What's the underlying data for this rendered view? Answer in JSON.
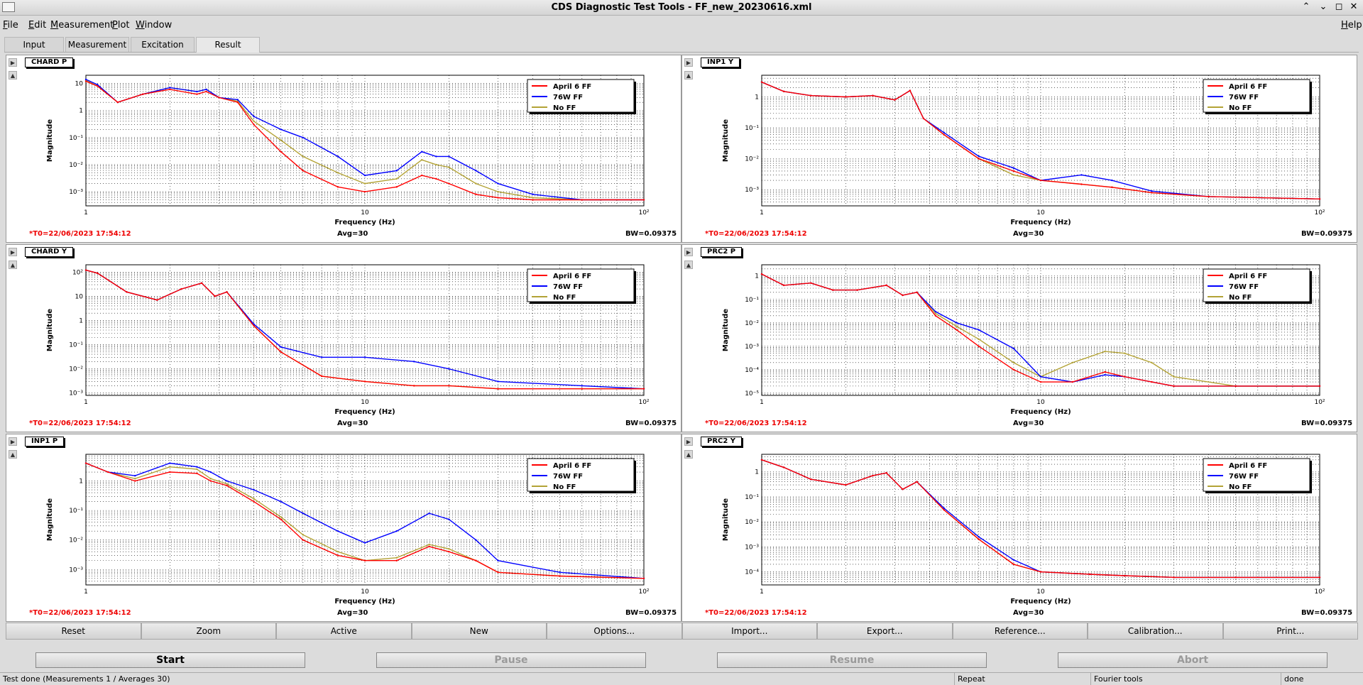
{
  "window": {
    "title": "CDS Diagnostic Test Tools - FF_new_20230616.xml"
  },
  "menu": [
    "File",
    "Edit",
    "Measurement",
    "Plot",
    "Window"
  ],
  "help": "Help",
  "tabs": [
    "Input",
    "Measurement",
    "Excitation",
    "Result"
  ],
  "active_tab": "Result",
  "common": {
    "xlabel": "Frequency (Hz)",
    "ylabel": "Magnitude",
    "t0": "*T0=22/06/2023 17:54:12",
    "avg": "Avg=30",
    "bw": "BW=0.09375"
  },
  "colors": {
    "red": "#ff0000",
    "blue": "#0000ff",
    "olive": "#b3a336"
  },
  "chart_data": [
    {
      "type": "line",
      "title": "CHARD P",
      "xlabel": "Frequency (Hz)",
      "ylabel": "Magnitude",
      "xscale": "log",
      "yscale": "log",
      "xlim": [
        1,
        100
      ],
      "ylim": [
        0.0003,
        20
      ],
      "grid": true,
      "legend": "top-right",
      "x_ticks": [
        "1",
        "10",
        "10²"
      ],
      "y_ticks": [
        "10",
        "1",
        "10⁻¹",
        "10⁻²",
        "10⁻³"
      ],
      "x": [
        1,
        1.1,
        1.3,
        1.6,
        2,
        2.5,
        2.7,
        3,
        3.5,
        4,
        5,
        6,
        8,
        10,
        13,
        16,
        18,
        20,
        25,
        30,
        40,
        60,
        100
      ],
      "series": [
        {
          "name": "April 6 FF",
          "color": "#ff0000",
          "values": [
            12,
            8,
            2,
            4,
            6,
            4,
            5,
            3,
            2,
            0.3,
            0.03,
            0.006,
            0.0015,
            0.001,
            0.0015,
            0.004,
            0.003,
            0.002,
            0.0008,
            0.0006,
            0.0005,
            0.0005,
            0.0005
          ]
        },
        {
          "name": "76W FF",
          "color": "#0000ff",
          "values": [
            14,
            9,
            2,
            4,
            7,
            5,
            6,
            3,
            2.5,
            0.6,
            0.2,
            0.1,
            0.02,
            0.004,
            0.006,
            0.03,
            0.02,
            0.02,
            0.006,
            0.002,
            0.0008,
            0.0005,
            0.0005
          ]
        },
        {
          "name": "No FF",
          "color": "#b3a336",
          "values": [
            13,
            8,
            2,
            4,
            7,
            5,
            6,
            3,
            2.2,
            0.4,
            0.08,
            0.02,
            0.005,
            0.002,
            0.003,
            0.015,
            0.01,
            0.008,
            0.002,
            0.001,
            0.0006,
            0.0005,
            0.0005
          ]
        }
      ]
    },
    {
      "type": "line",
      "title": "INP1 Y",
      "xlabel": "Frequency (Hz)",
      "ylabel": "Magnitude",
      "xscale": "log",
      "yscale": "log",
      "xlim": [
        1,
        100
      ],
      "ylim": [
        0.0003,
        5
      ],
      "grid": true,
      "legend": "top-right",
      "x_ticks": [
        "1",
        "10",
        "10²"
      ],
      "y_ticks": [
        "1",
        "10⁻¹",
        "10⁻²",
        "10⁻³"
      ],
      "x": [
        1,
        1.2,
        1.5,
        2,
        2.5,
        3,
        3.4,
        3.8,
        4.5,
        6,
        8,
        10,
        14,
        18,
        25,
        40,
        100
      ],
      "series": [
        {
          "name": "April 6 FF",
          "color": "#ff0000",
          "values": [
            3,
            1.5,
            1.1,
            1.0,
            1.1,
            0.8,
            1.6,
            0.2,
            0.06,
            0.01,
            0.004,
            0.002,
            0.0015,
            0.0012,
            0.0008,
            0.0006,
            0.0005
          ]
        },
        {
          "name": "76W FF",
          "color": "#0000ff",
          "values": [
            3,
            1.5,
            1.1,
            1.0,
            1.1,
            0.8,
            1.6,
            0.2,
            0.07,
            0.012,
            0.005,
            0.002,
            0.003,
            0.002,
            0.0009,
            0.0006,
            0.0005
          ]
        },
        {
          "name": "No FF",
          "color": "#b3a336",
          "values": [
            3,
            1.5,
            1.1,
            1.0,
            1.1,
            0.8,
            1.6,
            0.2,
            0.06,
            0.01,
            0.003,
            0.002,
            0.0015,
            0.0012,
            0.0008,
            0.0006,
            0.0005
          ]
        }
      ]
    },
    {
      "type": "line",
      "title": "CHARD Y",
      "xlabel": "Frequency (Hz)",
      "ylabel": "Magnitude",
      "xscale": "log",
      "yscale": "log",
      "xlim": [
        1,
        100
      ],
      "ylim": [
        0.0008,
        200
      ],
      "grid": true,
      "legend": "top-right",
      "x_ticks": [
        "1",
        "10",
        "10²"
      ],
      "y_ticks": [
        "10²",
        "10",
        "1",
        "10⁻¹",
        "10⁻²",
        "10⁻³"
      ],
      "x": [
        1,
        1.1,
        1.4,
        1.8,
        2.2,
        2.6,
        2.9,
        3.2,
        4,
        5,
        7,
        10,
        15,
        20,
        30,
        60,
        100
      ],
      "series": [
        {
          "name": "April 6 FF",
          "color": "#ff0000",
          "values": [
            120,
            90,
            15,
            7,
            20,
            35,
            10,
            15,
            0.6,
            0.05,
            0.005,
            0.003,
            0.002,
            0.002,
            0.0015,
            0.0015,
            0.0015
          ]
        },
        {
          "name": "76W FF",
          "color": "#0000ff",
          "values": [
            120,
            90,
            15,
            7,
            20,
            35,
            10,
            15,
            0.7,
            0.08,
            0.03,
            0.03,
            0.02,
            0.01,
            0.003,
            0.002,
            0.0015
          ]
        },
        {
          "name": "No FF",
          "color": "#b3a336",
          "values": [
            120,
            90,
            15,
            7,
            20,
            35,
            10,
            15,
            0.6,
            0.05,
            0.005,
            0.003,
            0.002,
            0.002,
            0.0015,
            0.0015,
            0.0015
          ]
        }
      ]
    },
    {
      "type": "line",
      "title": "PRC2 P",
      "xlabel": "Frequency (Hz)",
      "ylabel": "Magnitude",
      "xscale": "log",
      "yscale": "log",
      "xlim": [
        1,
        100
      ],
      "ylim": [
        8e-06,
        3
      ],
      "grid": true,
      "legend": "top-right",
      "x_ticks": [
        "1",
        "10",
        "10²"
      ],
      "y_ticks": [
        "1",
        "10⁻¹",
        "10⁻²",
        "10⁻³",
        "10⁻⁴",
        "10⁻⁵"
      ],
      "x": [
        1,
        1.2,
        1.5,
        1.8,
        2.2,
        2.8,
        3.2,
        3.6,
        4.2,
        5,
        6,
        8,
        10,
        13,
        17,
        20,
        25,
        30,
        50,
        100
      ],
      "series": [
        {
          "name": "April 6 FF",
          "color": "#ff0000",
          "values": [
            1.2,
            0.4,
            0.5,
            0.25,
            0.25,
            0.4,
            0.15,
            0.2,
            0.02,
            0.005,
            0.001,
            0.0001,
            3e-05,
            3e-05,
            8e-05,
            5e-05,
            3e-05,
            2e-05,
            2e-05,
            2e-05
          ]
        },
        {
          "name": "76W FF",
          "color": "#0000ff",
          "values": [
            1.2,
            0.4,
            0.5,
            0.25,
            0.25,
            0.4,
            0.15,
            0.2,
            0.03,
            0.01,
            0.005,
            0.0008,
            5e-05,
            3e-05,
            6e-05,
            5e-05,
            3e-05,
            2e-05,
            2e-05,
            2e-05
          ]
        },
        {
          "name": "No FF",
          "color": "#b3a336",
          "values": [
            1.2,
            0.4,
            0.5,
            0.25,
            0.25,
            0.4,
            0.15,
            0.2,
            0.025,
            0.007,
            0.002,
            0.0002,
            5e-05,
            0.0002,
            0.0006,
            0.0005,
            0.0002,
            5e-05,
            2e-05,
            2e-05
          ]
        }
      ]
    },
    {
      "type": "line",
      "title": "INP1 P",
      "xlabel": "Frequency (Hz)",
      "ylabel": "Magnitude",
      "xscale": "log",
      "yscale": "log",
      "xlim": [
        1,
        100
      ],
      "ylim": [
        0.0003,
        8
      ],
      "grid": true,
      "legend": "top-right",
      "x_ticks": [
        "1",
        "10",
        "10²"
      ],
      "y_ticks": [
        "1",
        "10⁻¹",
        "10⁻²",
        "10⁻³"
      ],
      "x": [
        1,
        1.2,
        1.5,
        2,
        2.5,
        2.8,
        3.2,
        4,
        5,
        6,
        8,
        10,
        13,
        17,
        20,
        25,
        30,
        50,
        100
      ],
      "series": [
        {
          "name": "April 6 FF",
          "color": "#ff0000",
          "values": [
            4,
            2,
            1,
            2,
            1.8,
            1,
            0.7,
            0.2,
            0.05,
            0.01,
            0.003,
            0.002,
            0.002,
            0.006,
            0.004,
            0.002,
            0.0008,
            0.0006,
            0.0005
          ]
        },
        {
          "name": "76W FF",
          "color": "#0000ff",
          "values": [
            4,
            2,
            1.5,
            4,
            3,
            2,
            1,
            0.5,
            0.2,
            0.08,
            0.02,
            0.008,
            0.02,
            0.08,
            0.05,
            0.01,
            0.002,
            0.0008,
            0.0005
          ]
        },
        {
          "name": "No FF",
          "color": "#b3a336",
          "values": [
            4,
            2,
            1.2,
            3,
            2.5,
            1.2,
            0.8,
            0.25,
            0.06,
            0.015,
            0.004,
            0.002,
            0.0025,
            0.007,
            0.005,
            0.002,
            0.0008,
            0.0006,
            0.0005
          ]
        }
      ]
    },
    {
      "type": "line",
      "title": "PRC2 Y",
      "xlabel": "Frequency (Hz)",
      "ylabel": "Magnitude",
      "xscale": "log",
      "yscale": "log",
      "xlim": [
        1,
        100
      ],
      "ylim": [
        3e-05,
        5
      ],
      "grid": true,
      "legend": "top-right",
      "x_ticks": [
        "1",
        "10",
        "10²"
      ],
      "y_ticks": [
        "1",
        "10⁻¹",
        "10⁻²",
        "10⁻³",
        "10⁻⁴"
      ],
      "x": [
        1,
        1.2,
        1.5,
        2,
        2.5,
        2.8,
        3.2,
        3.6,
        4.5,
        6,
        8,
        10,
        15,
        20,
        30,
        50,
        100
      ],
      "series": [
        {
          "name": "April 6 FF",
          "color": "#ff0000",
          "values": [
            3,
            1.5,
            0.5,
            0.3,
            0.7,
            0.9,
            0.2,
            0.4,
            0.03,
            0.002,
            0.0002,
            0.0001,
            8e-05,
            7e-05,
            6e-05,
            6e-05,
            6e-05
          ]
        },
        {
          "name": "76W FF",
          "color": "#0000ff",
          "values": [
            3,
            1.5,
            0.5,
            0.3,
            0.7,
            0.9,
            0.2,
            0.4,
            0.035,
            0.0025,
            0.0003,
            0.0001,
            8e-05,
            7e-05,
            6e-05,
            6e-05,
            6e-05
          ]
        },
        {
          "name": "No FF",
          "color": "#b3a336",
          "values": [
            3,
            1.5,
            0.5,
            0.3,
            0.7,
            0.9,
            0.2,
            0.4,
            0.03,
            0.002,
            0.0002,
            0.0001,
            8e-05,
            7e-05,
            6e-05,
            6e-05,
            6e-05
          ]
        }
      ]
    }
  ],
  "buttons": [
    "Reset",
    "Zoom",
    "Active",
    "New",
    "Options...",
    "Import...",
    "Export...",
    "Reference...",
    "Calibration...",
    "Print..."
  ],
  "controls": {
    "start": "Start",
    "pause": "Pause",
    "resume": "Resume",
    "abort": "Abort"
  },
  "status": {
    "message": "Test done (Measurements 1 / Averages 30)",
    "mode": "Repeat",
    "tools": "Fourier tools",
    "state": "done"
  }
}
